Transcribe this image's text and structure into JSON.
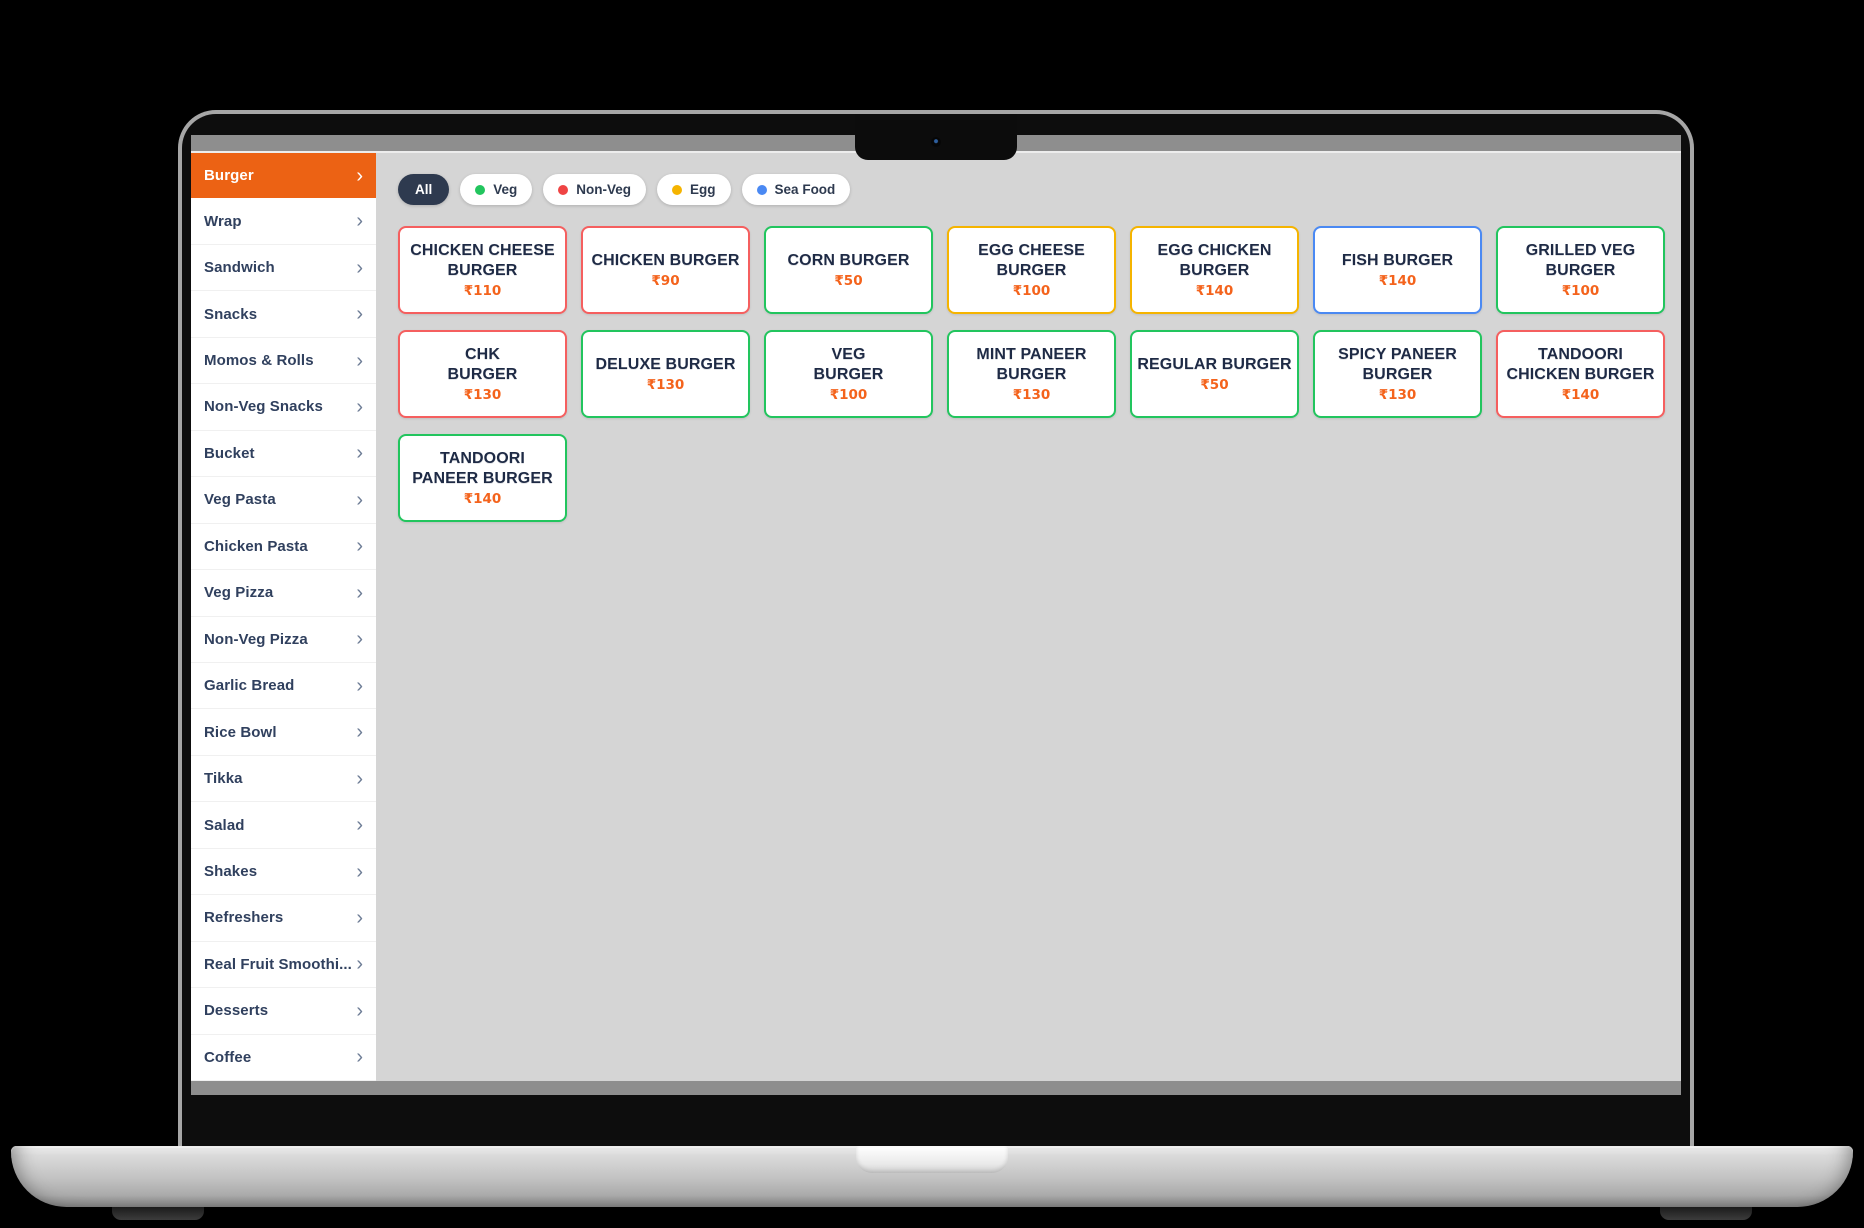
{
  "sidebar": {
    "items": [
      {
        "label": "Burger",
        "selected": true
      },
      {
        "label": "Wrap"
      },
      {
        "label": "Sandwich"
      },
      {
        "label": "Snacks"
      },
      {
        "label": "Momos & Rolls"
      },
      {
        "label": "Non-Veg Snacks"
      },
      {
        "label": "Bucket"
      },
      {
        "label": "Veg Pasta"
      },
      {
        "label": "Chicken Pasta"
      },
      {
        "label": "Veg Pizza"
      },
      {
        "label": "Non-Veg Pizza"
      },
      {
        "label": "Garlic Bread"
      },
      {
        "label": "Rice Bowl"
      },
      {
        "label": "Tikka"
      },
      {
        "label": "Salad"
      },
      {
        "label": "Shakes"
      },
      {
        "label": "Refreshers"
      },
      {
        "label": "Real Fruit Smoothi..."
      },
      {
        "label": "Desserts"
      },
      {
        "label": "Coffee"
      }
    ]
  },
  "filters": {
    "chips": [
      {
        "label": "All",
        "active": true
      },
      {
        "label": "Veg",
        "dot_color": "#22c55e"
      },
      {
        "label": "Non-Veg",
        "dot_color": "#ef4444"
      },
      {
        "label": "Egg",
        "dot_color": "#f5b400"
      },
      {
        "label": "Sea Food",
        "dot_color": "#4a89f3"
      }
    ]
  },
  "menu": {
    "items": [
      {
        "name": "CHICKEN CHEESE\nBURGER",
        "price": "₹110",
        "category": "non-veg"
      },
      {
        "name": "CHICKEN BURGER",
        "price": "₹90",
        "category": "non-veg"
      },
      {
        "name": "CORN BURGER",
        "price": "₹50",
        "category": "veg"
      },
      {
        "name": "EGG CHEESE\nBURGER",
        "price": "₹100",
        "category": "egg"
      },
      {
        "name": "EGG CHICKEN\nBURGER",
        "price": "₹140",
        "category": "egg"
      },
      {
        "name": "FISH BURGER",
        "price": "₹140",
        "category": "seafood"
      },
      {
        "name": "GRILLED VEG\nBURGER",
        "price": "₹100",
        "category": "veg"
      },
      {
        "name": "CHK\nBURGER",
        "price": "₹130",
        "category": "non-veg"
      },
      {
        "name": "DELUXE BURGER",
        "price": "₹130",
        "category": "veg"
      },
      {
        "name": "VEG\nBURGER",
        "price": "₹100",
        "category": "veg"
      },
      {
        "name": "MINT PANEER\nBURGER",
        "price": "₹130",
        "category": "veg"
      },
      {
        "name": "REGULAR BURGER",
        "price": "₹50",
        "category": "veg"
      },
      {
        "name": "SPICY PANEER\nBURGER",
        "price": "₹130",
        "category": "veg"
      },
      {
        "name": "TANDOORI\nCHICKEN BURGER",
        "price": "₹140",
        "category": "non-veg"
      },
      {
        "name": "TANDOORI\nPANEER BURGER",
        "price": "₹140",
        "category": "veg"
      }
    ]
  },
  "colors": {
    "accent_orange": "#ec6214",
    "price_orange": "#f4631c",
    "chip_active_bg": "#2e3a4f",
    "categories": {
      "veg": "#22c55e",
      "non-veg": "#f55f5f",
      "egg": "#f5b400",
      "seafood": "#4a89f3"
    }
  }
}
